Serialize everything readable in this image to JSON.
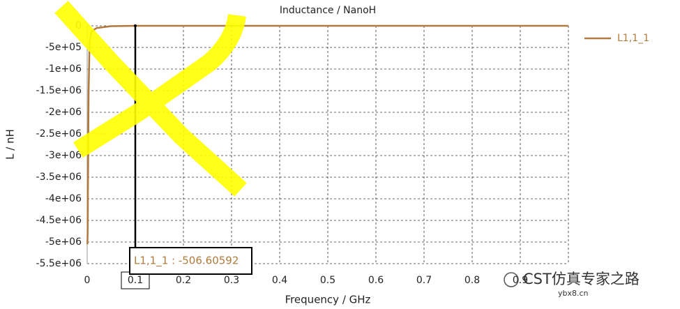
{
  "chart_data": {
    "type": "line",
    "title": "Inductance / NanoH",
    "x_label": "Frequency / GHz",
    "y_label": "L / nH",
    "x": [
      0.0005,
      0.001,
      0.0015,
      0.002,
      0.003,
      0.005,
      0.008,
      0.01,
      0.02,
      0.05,
      0.1,
      0.3,
      0.6,
      1.0
    ],
    "series": [
      {
        "name": "L1,1_1",
        "color": "#b07a3c",
        "values": [
          -5050000,
          -4800000,
          -3900000,
          -3200000,
          -1500000,
          -400000,
          -180000,
          -120000,
          -50000,
          -8000,
          -506.60592,
          -150,
          -80,
          -50
        ]
      }
    ],
    "xlim": [
      0,
      1
    ],
    "xticks": [
      0,
      0.1,
      0.2,
      0.3,
      0.4,
      0.5,
      0.6,
      0.7,
      0.8,
      0.9
    ],
    "ylim": [
      -5500000,
      0
    ],
    "yticks": [
      0,
      {
        "value": -500000,
        "label": "-5e+05"
      },
      {
        "value": -1000000,
        "label": "-1e+06"
      },
      {
        "value": -1500000,
        "label": "-1.5e+06"
      },
      {
        "value": -2000000,
        "label": "-2e+06"
      },
      {
        "value": -2500000,
        "label": "-2.5e+06"
      },
      {
        "value": -3000000,
        "label": "-3e+06"
      },
      {
        "value": -3500000,
        "label": "-3.5e+06"
      },
      {
        "value": -4000000,
        "label": "-4e+06"
      },
      {
        "value": -4500000,
        "label": "-4.5e+06"
      },
      {
        "value": -5000000,
        "label": "-5e+06"
      },
      {
        "value": -5500000,
        "label": "-5.5e+06"
      }
    ],
    "grid": true,
    "legend": "right",
    "marker": {
      "x": 0.1,
      "value": -506.60592,
      "label": "L1,1_1 : -506.60592"
    },
    "watermark": {
      "text": "CST仿真专家之路",
      "site": "ybx8.cn"
    }
  }
}
